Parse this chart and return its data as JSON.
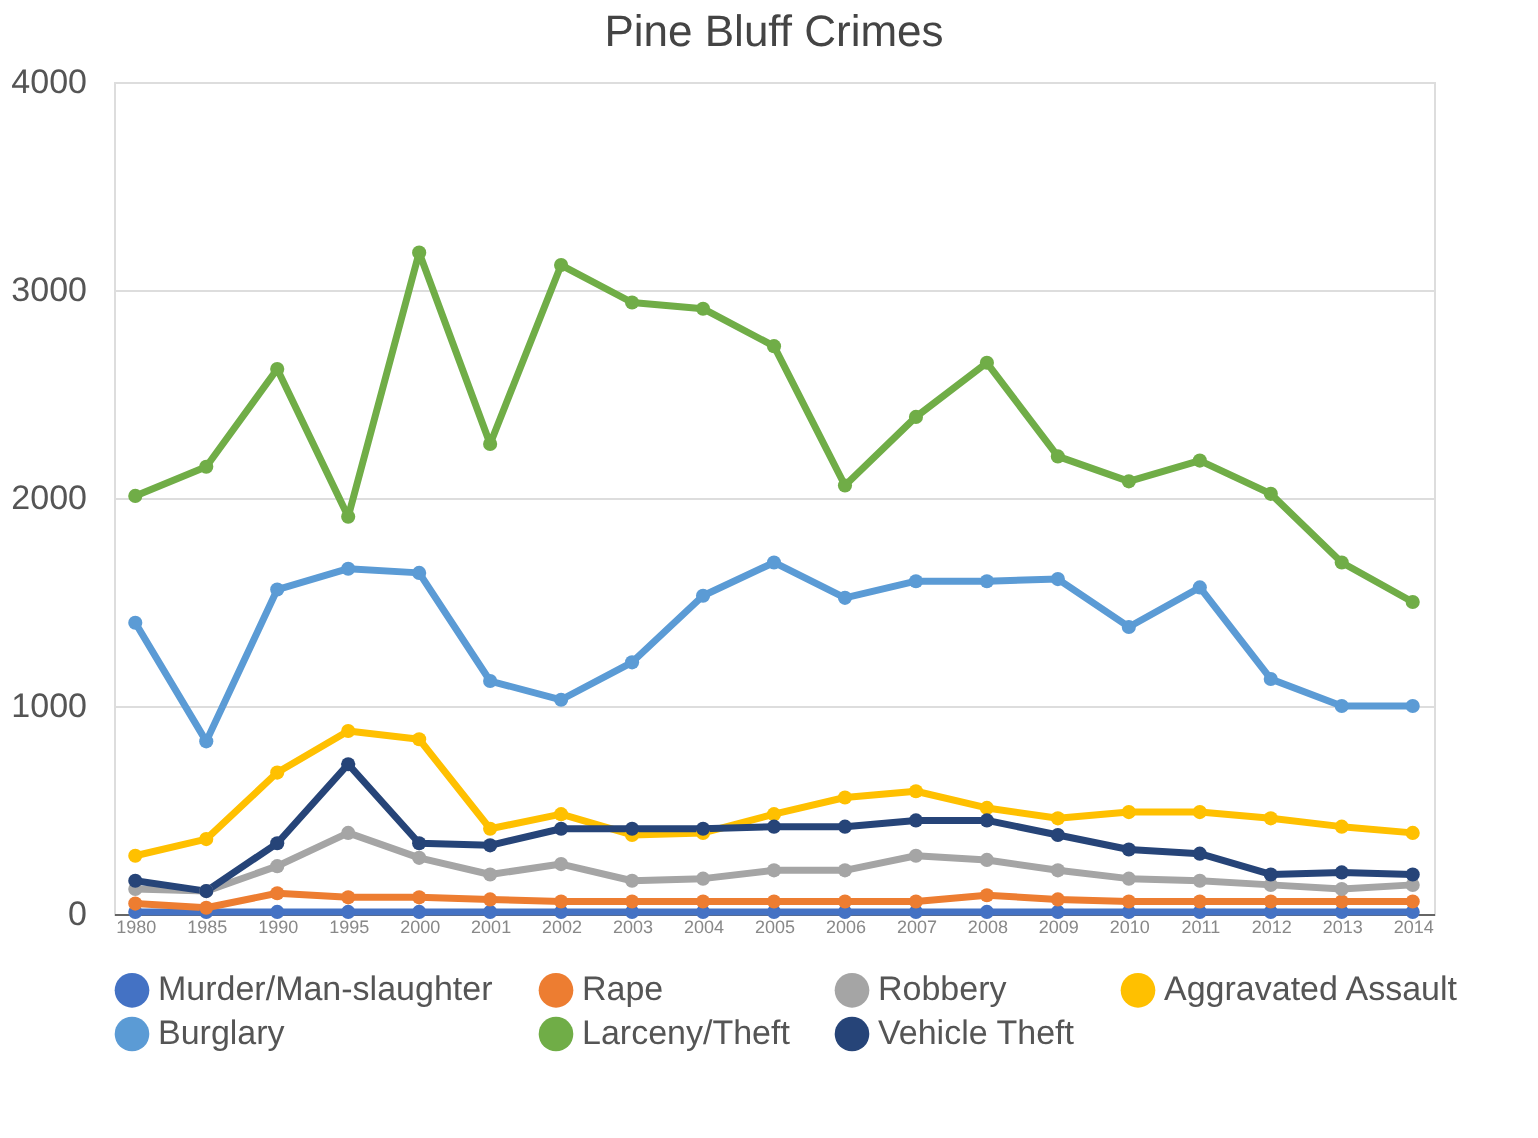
{
  "chart_data": {
    "type": "line",
    "title": "Pine Bluff Crimes",
    "categories": [
      "1980",
      "1985",
      "1990",
      "1995",
      "2000",
      "2001",
      "2002",
      "2003",
      "2004",
      "2005",
      "2006",
      "2007",
      "2008",
      "2009",
      "2010",
      "2011",
      "2012",
      "2013",
      "2014"
    ],
    "series": [
      {
        "name": "Murder/Man-slaughter",
        "color": "#4472c4",
        "values": [
          10,
          10,
          10,
          10,
          10,
          10,
          10,
          10,
          10,
          10,
          10,
          10,
          10,
          10,
          10,
          10,
          10,
          10,
          10
        ]
      },
      {
        "name": "Rape",
        "color": "#ed7d31",
        "values": [
          50,
          30,
          100,
          80,
          80,
          70,
          60,
          60,
          60,
          60,
          60,
          60,
          90,
          70,
          60,
          60,
          60,
          60,
          60
        ]
      },
      {
        "name": "Robbery",
        "color": "#a5a5a5",
        "values": [
          120,
          110,
          230,
          390,
          270,
          190,
          240,
          160,
          170,
          210,
          210,
          280,
          260,
          210,
          170,
          160,
          140,
          120,
          140
        ]
      },
      {
        "name": "Aggravated Assault",
        "color": "#ffc000",
        "values": [
          280,
          360,
          680,
          880,
          840,
          410,
          480,
          380,
          390,
          480,
          560,
          590,
          510,
          460,
          490,
          490,
          460,
          420,
          390
        ]
      },
      {
        "name": "Burglary",
        "color": "#5b9bd5",
        "values": [
          1400,
          830,
          1560,
          1660,
          1640,
          1120,
          1030,
          1210,
          1530,
          1690,
          1520,
          1600,
          1600,
          1610,
          1380,
          1570,
          1130,
          1000,
          1000
        ]
      },
      {
        "name": "Larceny/Theft",
        "color": "#70ad47",
        "values": [
          2010,
          2150,
          2620,
          1910,
          3180,
          2260,
          3120,
          2940,
          2910,
          2730,
          2060,
          2390,
          2650,
          2200,
          2080,
          2180,
          2020,
          1690,
          1500
        ]
      },
      {
        "name": "Vehicle Theft",
        "color": "#264478",
        "values": [
          160,
          110,
          340,
          720,
          340,
          330,
          410,
          410,
          410,
          420,
          420,
          450,
          450,
          380,
          310,
          290,
          190,
          200,
          190
        ]
      }
    ],
    "ylim": [
      0,
      4000
    ],
    "yticks": [
      0,
      1000,
      2000,
      3000,
      4000
    ],
    "grid": "y",
    "legend": "bottom",
    "marker": "circle",
    "line_style": "solid"
  }
}
